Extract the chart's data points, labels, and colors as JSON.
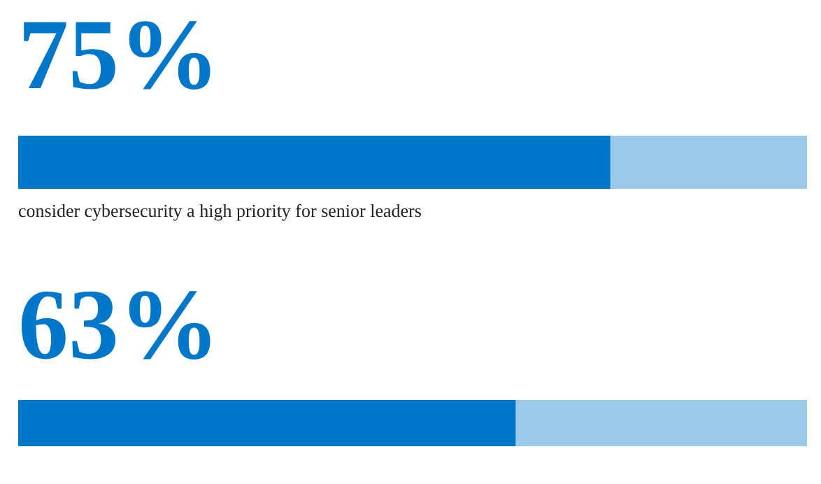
{
  "chart_data": [
    {
      "type": "bar",
      "orientation": "horizontal",
      "stacked": true,
      "categories": [
        null
      ],
      "xlim": [
        0,
        100
      ],
      "tick_labels": false,
      "series": [
        {
          "color": "#0077c8",
          "values": [
            75
          ],
          "value_labels": [
            "75%"
          ]
        },
        {
          "color": "#9bc9e9",
          "values": [
            25
          ]
        }
      ],
      "annotations": [
        "consider cybersecurity a high priority for senior leaders"
      ]
    },
    {
      "type": "bar",
      "orientation": "horizontal",
      "stacked": true,
      "categories": [
        null
      ],
      "xlim": [
        0,
        100
      ],
      "tick_labels": false,
      "series": [
        {
          "color": "#0077c8",
          "values": [
            63
          ],
          "value_labels": [
            "63%"
          ]
        },
        {
          "color": "#9bc9e9",
          "values": [
            37
          ]
        }
      ]
    }
  ]
}
